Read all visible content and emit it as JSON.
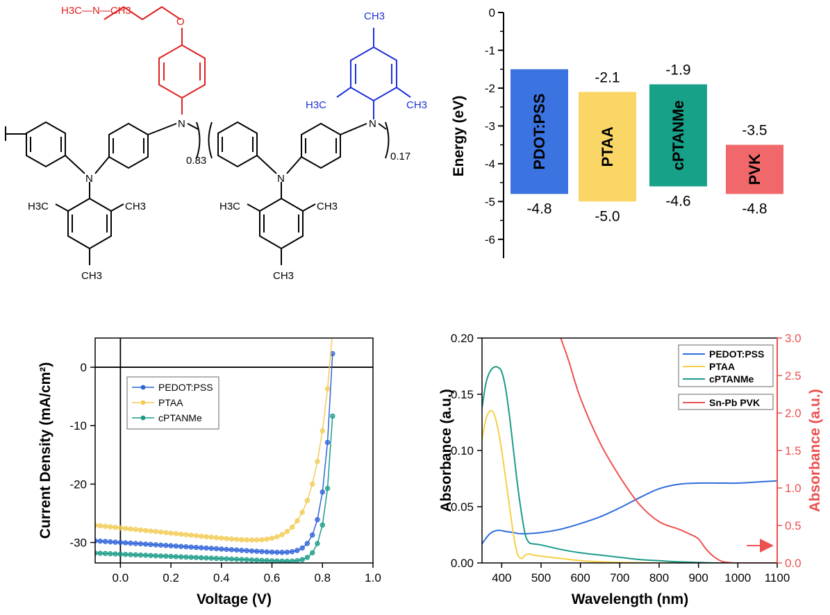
{
  "structure": {
    "red_color": "#e01e1e",
    "blue_color": "#1c2fd6",
    "labels": {
      "dimethylamine": "H3C—N—CH3",
      "oxygen": "O",
      "nitrogen": "N",
      "methyl_top": "CH3",
      "h3c_left": "H3C",
      "ch3_right": "CH3",
      "fraction_a": "0.83",
      "fraction_b": "0.17"
    }
  },
  "chart_data": [
    {
      "id": "energy",
      "type": "bar",
      "ylabel": "Energy (eV)",
      "ylim": [
        -6.5,
        0
      ],
      "yticks": [
        "0",
        "-1",
        "-2",
        "-3",
        "-4",
        "-5",
        "-6"
      ],
      "ytick_values": [
        0,
        -1,
        -2,
        -3,
        -4,
        -5,
        -6
      ],
      "bars": [
        {
          "name": "PDOT:PSS",
          "top": -1.5,
          "bottom": -4.8,
          "top_label": "",
          "bottom_label": "-4.8",
          "color": "#3b73e0"
        },
        {
          "name": "PTAA",
          "top": -2.1,
          "bottom": -5.0,
          "top_label": "-2.1",
          "bottom_label": "-5.0",
          "color": "#fad667"
        },
        {
          "name": "cPTANMe",
          "top": -1.9,
          "bottom": -4.6,
          "top_label": "-1.9",
          "bottom_label": "-4.6",
          "color": "#17a189"
        },
        {
          "name": "PVK",
          "top": -3.5,
          "bottom": -4.8,
          "top_label": "-3.5",
          "bottom_label": "-4.8",
          "color": "#f0686a"
        }
      ]
    },
    {
      "id": "jv",
      "type": "line",
      "xlabel": "Voltage (V)",
      "ylabel": "Current Density (mA/cm²)",
      "xlim": [
        -0.1,
        1.0
      ],
      "ylim": [
        -33.5,
        5
      ],
      "xticks": [
        "0.0",
        "0.2",
        "0.4",
        "0.6",
        "0.8",
        "1.0"
      ],
      "xtick_values": [
        0,
        0.2,
        0.4,
        0.6,
        0.8,
        1.0
      ],
      "yticks": [
        "0",
        "-10",
        "-20",
        "-30"
      ],
      "ytick_values": [
        0,
        -10,
        -20,
        -30
      ],
      "legend_position": "center-left",
      "series": [
        {
          "name": "PEDOT:PSS",
          "color": "#2e63d9",
          "jsc": -30.0,
          "slope": -2.8,
          "voc": 0.835,
          "a": 0.0345,
          "gap": 0.02
        },
        {
          "name": "PTAA",
          "color": "#f2cc55",
          "jsc": -27.5,
          "slope": -4.5,
          "voc": 0.82,
          "a": 0.065,
          "gap": 0.02
        },
        {
          "name": "cPTANMe",
          "color": "#1a9b88",
          "jsc": -32.0,
          "slope": -1.9,
          "voc": 0.847,
          "a": 0.0295,
          "gap": 0.02
        }
      ]
    },
    {
      "id": "absorbance",
      "type": "line",
      "xlabel": "Wavelength (nm)",
      "ylabel": "Absorbance (a.u.)",
      "y2label": "Absorbance (a.u.)",
      "xlim": [
        350,
        1100
      ],
      "ylim": [
        0,
        0.2
      ],
      "y2lim": [
        0,
        3.0
      ],
      "xticks": [
        "400",
        "500",
        "600",
        "700",
        "800",
        "900",
        "1000",
        "1100"
      ],
      "xtick_values": [
        400,
        500,
        600,
        700,
        800,
        900,
        1000,
        1100
      ],
      "yticks": [
        "0.00",
        "0.05",
        "0.10",
        "0.15",
        "0.20"
      ],
      "ytick_values": [
        0,
        0.05,
        0.1,
        0.15,
        0.2
      ],
      "y2ticks": [
        "0.0",
        "0.5",
        "1.0",
        "1.5",
        "2.0",
        "2.5",
        "3.0"
      ],
      "y2tick_values": [
        0,
        0.5,
        1.0,
        1.5,
        2.0,
        2.5,
        3.0
      ],
      "legend_position": "top-right",
      "secondary_axis_color": "#ee5050",
      "series": [
        {
          "name": "PEDOT:PSS",
          "color": "#2e6bdc",
          "axis": "left",
          "x": [
            350,
            370,
            390,
            410,
            430,
            450,
            500,
            550,
            600,
            650,
            700,
            750,
            800,
            850,
            900,
            950,
            1000,
            1050,
            1100
          ],
          "y": [
            0.017,
            0.026,
            0.029,
            0.028,
            0.027,
            0.026,
            0.027,
            0.03,
            0.035,
            0.041,
            0.049,
            0.058,
            0.066,
            0.07,
            0.071,
            0.071,
            0.071,
            0.072,
            0.073
          ]
        },
        {
          "name": "PTAA",
          "color": "#f7cf45",
          "axis": "left",
          "x": [
            350,
            360,
            370,
            380,
            390,
            400,
            410,
            420,
            430,
            440,
            450,
            460,
            470,
            480,
            500,
            550,
            600,
            650,
            700,
            800,
            900,
            1100
          ],
          "y": [
            0.11,
            0.128,
            0.135,
            0.133,
            0.12,
            0.1,
            0.075,
            0.05,
            0.025,
            0.008,
            0.004,
            0.007,
            0.008,
            0.007,
            0.006,
            0.004,
            0.002,
            0.001,
            0.0005,
            0.0,
            0.0,
            0.0
          ]
        },
        {
          "name": "cPTANMe",
          "color": "#1a9b88",
          "axis": "left",
          "x": [
            350,
            360,
            370,
            380,
            390,
            400,
            410,
            420,
            430,
            440,
            450,
            460,
            470,
            480,
            500,
            550,
            600,
            650,
            700,
            750,
            800,
            850,
            900,
            950,
            1100
          ],
          "y": [
            0.138,
            0.16,
            0.17,
            0.174,
            0.174,
            0.17,
            0.155,
            0.13,
            0.1,
            0.07,
            0.045,
            0.025,
            0.018,
            0.017,
            0.016,
            0.012,
            0.009,
            0.007,
            0.005,
            0.003,
            0.002,
            0.001,
            0.0005,
            0.0,
            0.0
          ]
        },
        {
          "name": "Sn-Pb PVK",
          "color": "#ee5050",
          "axis": "right",
          "x": [
            550,
            570,
            600,
            650,
            700,
            750,
            800,
            850,
            880,
            900,
            920,
            940,
            960,
            980,
            1000,
            1100
          ],
          "y": [
            3.0,
            2.7,
            2.2,
            1.6,
            1.15,
            0.78,
            0.55,
            0.45,
            0.38,
            0.32,
            0.18,
            0.08,
            0.02,
            0.005,
            0.0,
            0.0
          ]
        }
      ]
    }
  ]
}
